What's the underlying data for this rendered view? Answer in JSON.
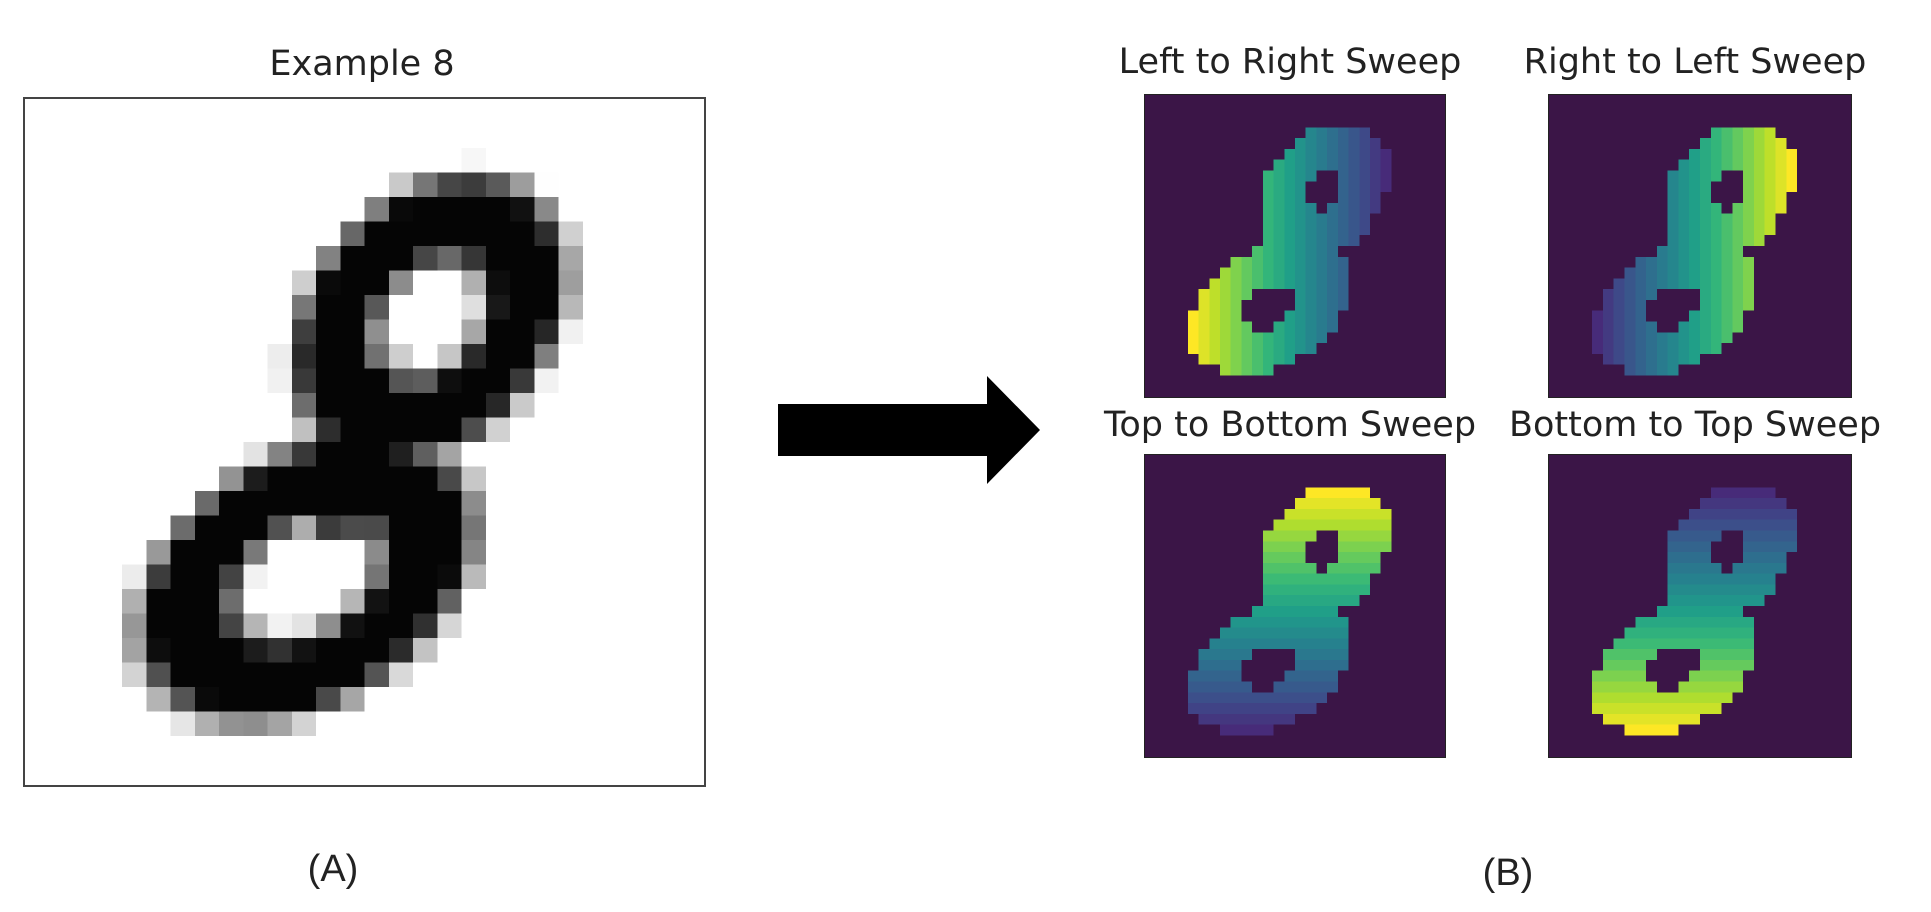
{
  "panel_a": {
    "title": "Example 8",
    "caption": "(A)"
  },
  "arrow": {
    "icon": "right-arrow-icon",
    "color": "#000000"
  },
  "panel_b": {
    "caption": "(B)",
    "colormap": "viridis",
    "background_color": "#3b1547",
    "sweeps": [
      {
        "title": "Left to Right Sweep"
      },
      {
        "title": "Right to Left Sweep"
      },
      {
        "title": "Top to Bottom Sweep"
      },
      {
        "title": "Bottom to Top Sweep"
      }
    ]
  }
}
